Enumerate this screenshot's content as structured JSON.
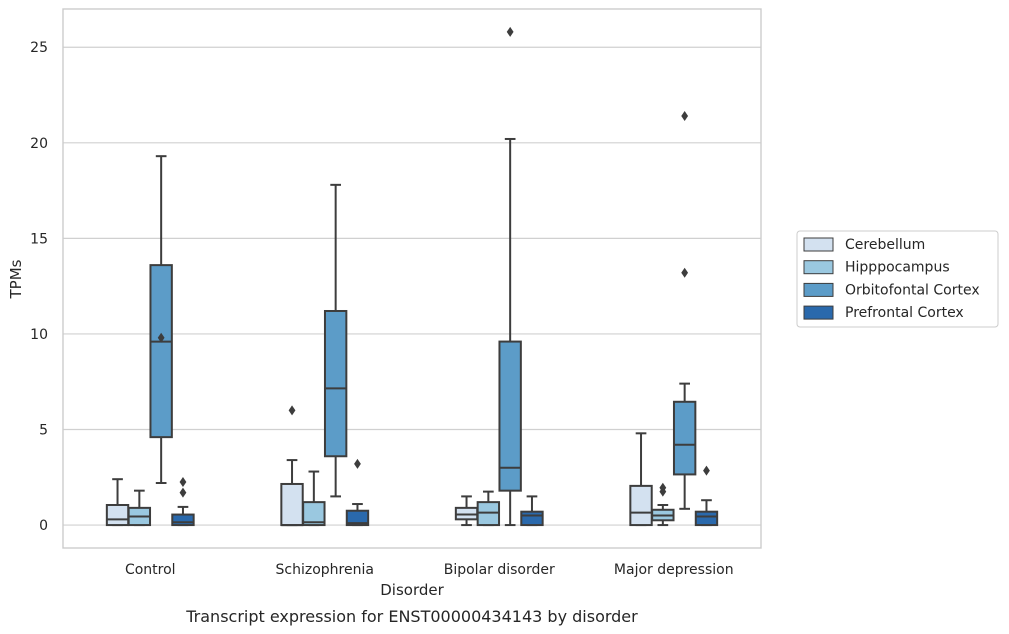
{
  "chart_data": {
    "type": "boxplot",
    "title": "",
    "caption": "Transcript expression for ENST00000434143 by disorder",
    "xlabel": "Disorder",
    "ylabel": "TPMs",
    "ylim": [
      -1.2,
      27.0
    ],
    "yticks": [
      0,
      5,
      10,
      15,
      20,
      25
    ],
    "grid": "horizontal",
    "legend_position": "right",
    "categories": [
      "Control",
      "Schizophrenia",
      "Bipolar disorder",
      "Major depression"
    ],
    "series": [
      {
        "name": "Cerebellum",
        "color": "#d3e1f0",
        "boxes": [
          {
            "whislo": 0.0,
            "q1": 0.0,
            "med": 0.3,
            "q3": 1.05,
            "whishi": 2.4,
            "fliers": []
          },
          {
            "whislo": 0.0,
            "q1": 0.0,
            "med": 0.0,
            "q3": 2.15,
            "whishi": 3.4,
            "fliers": [
              6.0
            ]
          },
          {
            "whislo": 0.0,
            "q1": 0.3,
            "med": 0.55,
            "q3": 0.9,
            "whishi": 1.5,
            "fliers": []
          },
          {
            "whislo": 0.0,
            "q1": 0.0,
            "med": 0.65,
            "q3": 2.05,
            "whishi": 4.8,
            "fliers": []
          }
        ]
      },
      {
        "name": "Hipppocampus",
        "color": "#9ac8e0",
        "boxes": [
          {
            "whislo": 0.0,
            "q1": 0.0,
            "med": 0.45,
            "q3": 0.9,
            "whishi": 1.8,
            "fliers": []
          },
          {
            "whislo": 0.0,
            "q1": 0.0,
            "med": 0.15,
            "q3": 1.2,
            "whishi": 2.8,
            "fliers": []
          },
          {
            "whislo": 0.0,
            "q1": 0.0,
            "med": 0.65,
            "q3": 1.2,
            "whishi": 1.75,
            "fliers": []
          },
          {
            "whislo": 0.0,
            "q1": 0.25,
            "med": 0.5,
            "q3": 0.8,
            "whishi": 1.05,
            "fliers": [
              1.75,
              1.95
            ]
          }
        ]
      },
      {
        "name": "Orbitofontal Cortex",
        "color": "#5c9cc8",
        "boxes": [
          {
            "whislo": 2.2,
            "q1": 4.6,
            "med": 9.6,
            "q3": 13.6,
            "whishi": 19.3,
            "fliers": [
              9.8
            ]
          },
          {
            "whislo": 1.5,
            "q1": 3.6,
            "med": 7.15,
            "q3": 11.2,
            "whishi": 17.8,
            "fliers": []
          },
          {
            "whislo": 0.0,
            "q1": 1.8,
            "med": 3.0,
            "q3": 9.6,
            "whishi": 20.2,
            "fliers": [
              25.8
            ]
          },
          {
            "whislo": 0.85,
            "q1": 2.65,
            "med": 4.2,
            "q3": 6.45,
            "whishi": 7.4,
            "fliers": [
              13.2,
              21.4
            ]
          }
        ]
      },
      {
        "name": "Prefrontal Cortex",
        "color": "#2a69ac",
        "boxes": [
          {
            "whislo": 0.0,
            "q1": 0.0,
            "med": 0.15,
            "q3": 0.55,
            "whishi": 0.95,
            "fliers": [
              1.7,
              2.25
            ]
          },
          {
            "whislo": 0.0,
            "q1": 0.0,
            "med": 0.1,
            "q3": 0.75,
            "whishi": 1.1,
            "fliers": [
              3.2
            ]
          },
          {
            "whislo": 0.0,
            "q1": 0.0,
            "med": 0.5,
            "q3": 0.7,
            "whishi": 1.5,
            "fliers": []
          },
          {
            "whislo": 0.0,
            "q1": 0.0,
            "med": 0.45,
            "q3": 0.7,
            "whishi": 1.3,
            "fliers": [
              2.85
            ]
          }
        ]
      }
    ]
  }
}
